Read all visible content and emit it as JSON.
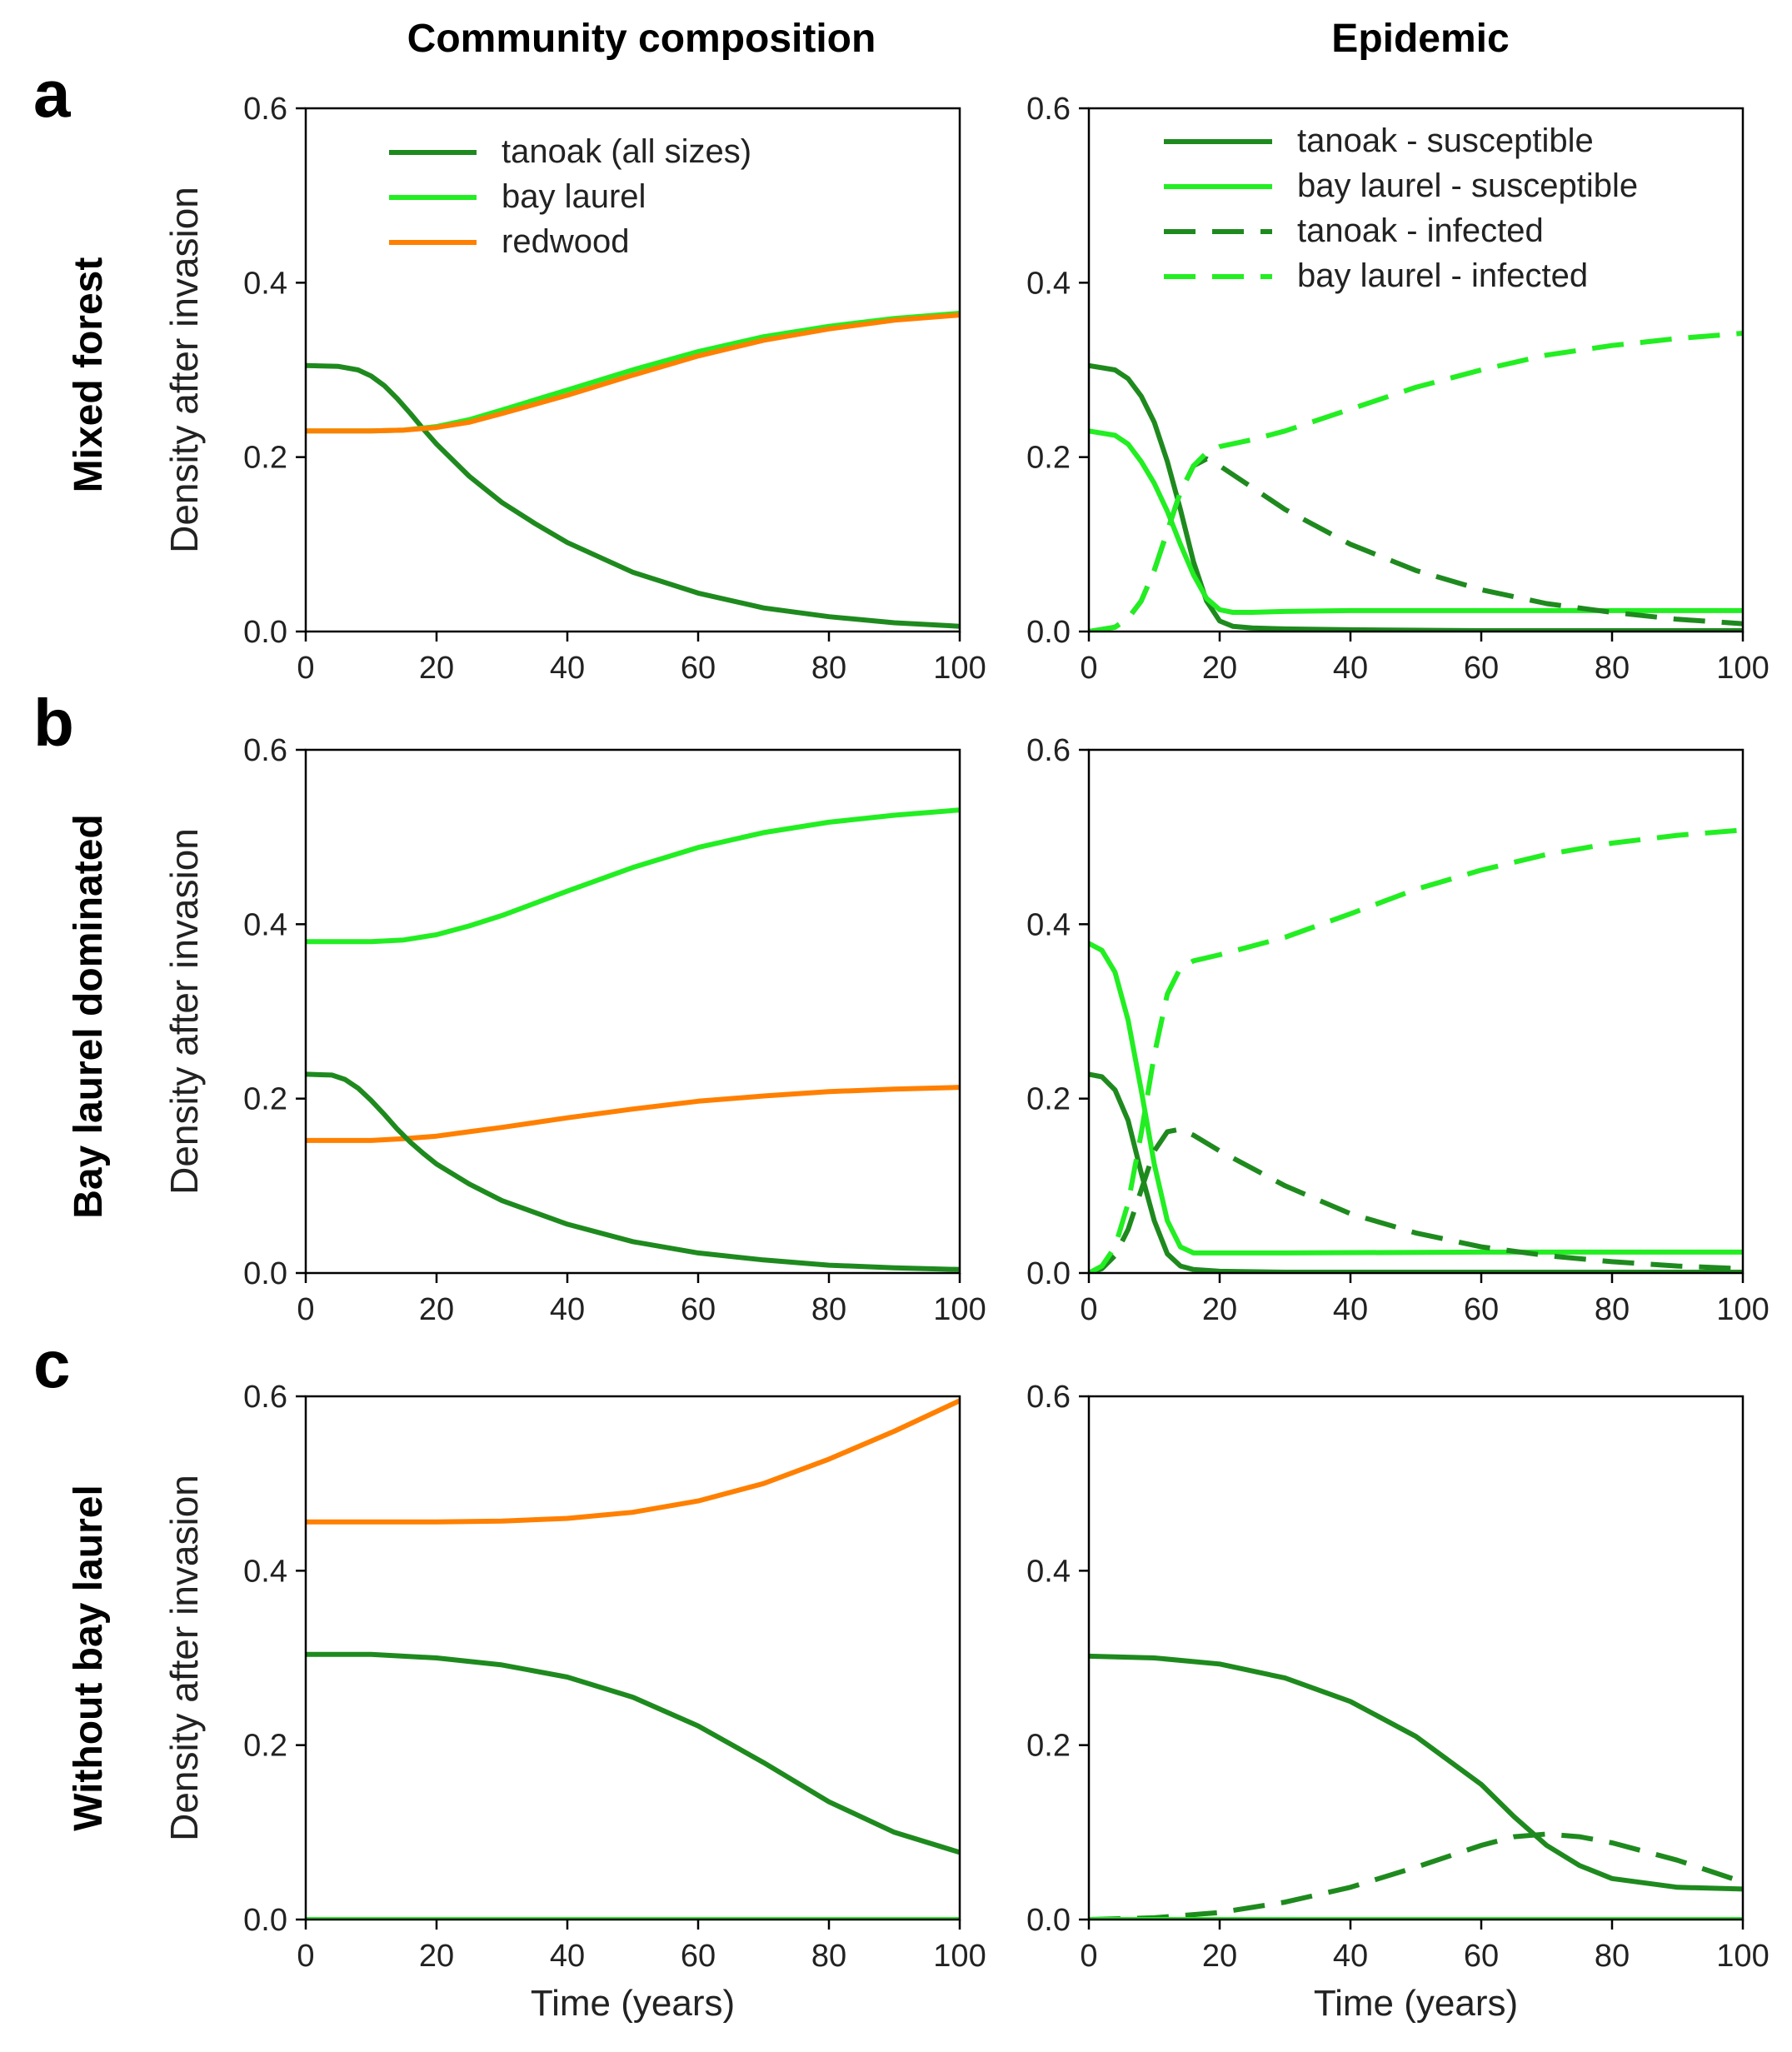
{
  "figure": {
    "column_headers": [
      "Community composition",
      "Epidemic"
    ],
    "rows": [
      {
        "letter": "a",
        "label": "Mixed forest"
      },
      {
        "letter": "b",
        "label": "Bay laurel dominated"
      },
      {
        "letter": "c",
        "label": "Without bay laurel"
      }
    ],
    "colors": {
      "dark_green": "#1e8a1e",
      "light_green": "#22ee22",
      "orange": "#ff8000"
    }
  },
  "chart_data": [
    {
      "id": "a-community",
      "type": "line",
      "title": "",
      "xlabel": "",
      "ylabel": "Density after invasion",
      "xlim": [
        0,
        100
      ],
      "ylim": [
        0,
        0.6
      ],
      "xticks": [
        0,
        20,
        40,
        60,
        80,
        100
      ],
      "yticks": [
        "0.0",
        "0.2",
        "0.4",
        "0.6"
      ],
      "legend": [
        "tanoak (all sizes)",
        "bay laurel",
        "redwood"
      ],
      "series": [
        {
          "name": "tanoak (all sizes)",
          "color": "#1e8a1e",
          "dash": "solid",
          "x": [
            0,
            5,
            8,
            10,
            12,
            14,
            16,
            18,
            20,
            25,
            30,
            35,
            40,
            50,
            60,
            70,
            80,
            90,
            100
          ],
          "y": [
            0.305,
            0.304,
            0.3,
            0.293,
            0.282,
            0.267,
            0.25,
            0.232,
            0.215,
            0.178,
            0.148,
            0.124,
            0.102,
            0.068,
            0.044,
            0.027,
            0.017,
            0.01,
            0.006
          ]
        },
        {
          "name": "bay laurel",
          "color": "#22ee22",
          "dash": "solid",
          "x": [
            0,
            10,
            15,
            20,
            25,
            30,
            40,
            50,
            60,
            70,
            80,
            90,
            100
          ],
          "y": [
            0.23,
            0.23,
            0.231,
            0.235,
            0.243,
            0.254,
            0.277,
            0.3,
            0.321,
            0.338,
            0.35,
            0.359,
            0.365
          ]
        },
        {
          "name": "redwood",
          "color": "#ff8000",
          "dash": "solid",
          "x": [
            0,
            10,
            15,
            20,
            25,
            30,
            40,
            50,
            60,
            70,
            80,
            90,
            100
          ],
          "y": [
            0.23,
            0.23,
            0.231,
            0.234,
            0.24,
            0.25,
            0.271,
            0.294,
            0.316,
            0.334,
            0.347,
            0.357,
            0.363
          ]
        }
      ]
    },
    {
      "id": "a-epidemic",
      "type": "line",
      "title": "",
      "xlabel": "",
      "ylabel": "",
      "xlim": [
        0,
        100
      ],
      "ylim": [
        0,
        0.6
      ],
      "xticks": [
        0,
        20,
        40,
        60,
        80,
        100
      ],
      "yticks": [
        "0.0",
        "0.2",
        "0.4",
        "0.6"
      ],
      "legend": [
        "tanoak - susceptible",
        "bay laurel - susceptible",
        "tanoak - infected",
        "bay laurel - infected"
      ],
      "series": [
        {
          "name": "tanoak - susceptible",
          "color": "#1e8a1e",
          "dash": "solid",
          "x": [
            0,
            4,
            6,
            8,
            10,
            12,
            14,
            16,
            18,
            20,
            22,
            25,
            30,
            40,
            60,
            80,
            100
          ],
          "y": [
            0.305,
            0.3,
            0.29,
            0.27,
            0.24,
            0.195,
            0.14,
            0.08,
            0.035,
            0.012,
            0.006,
            0.004,
            0.003,
            0.002,
            0.001,
            0.001,
            0.001
          ]
        },
        {
          "name": "bay laurel - susceptible",
          "color": "#22ee22",
          "dash": "solid",
          "x": [
            0,
            4,
            6,
            8,
            10,
            12,
            14,
            16,
            18,
            20,
            22,
            25,
            30,
            40,
            60,
            80,
            100
          ],
          "y": [
            0.23,
            0.225,
            0.215,
            0.195,
            0.17,
            0.138,
            0.1,
            0.065,
            0.038,
            0.025,
            0.022,
            0.022,
            0.023,
            0.024,
            0.024,
            0.024,
            0.024
          ]
        },
        {
          "name": "tanoak - infected",
          "color": "#1e8a1e",
          "dash": "dash",
          "x": [
            0,
            4,
            6,
            8,
            10,
            12,
            14,
            16,
            18,
            20,
            25,
            30,
            40,
            50,
            60,
            70,
            80,
            90,
            100
          ],
          "y": [
            0.0,
            0.005,
            0.015,
            0.035,
            0.07,
            0.115,
            0.16,
            0.19,
            0.198,
            0.19,
            0.165,
            0.14,
            0.1,
            0.07,
            0.048,
            0.032,
            0.022,
            0.014,
            0.009
          ]
        },
        {
          "name": "bay laurel - infected",
          "color": "#22ee22",
          "dash": "dash",
          "x": [
            0,
            4,
            6,
            8,
            10,
            12,
            14,
            16,
            18,
            20,
            25,
            30,
            40,
            50,
            60,
            70,
            80,
            90,
            100
          ],
          "y": [
            0.0,
            0.005,
            0.015,
            0.035,
            0.07,
            0.115,
            0.16,
            0.19,
            0.205,
            0.212,
            0.22,
            0.23,
            0.255,
            0.28,
            0.3,
            0.317,
            0.328,
            0.336,
            0.342
          ]
        }
      ]
    },
    {
      "id": "b-community",
      "type": "line",
      "title": "",
      "xlabel": "",
      "ylabel": "Density after invasion",
      "xlim": [
        0,
        100
      ],
      "ylim": [
        0,
        0.6
      ],
      "xticks": [
        0,
        20,
        40,
        60,
        80,
        100
      ],
      "yticks": [
        "0.0",
        "0.2",
        "0.4",
        "0.6"
      ],
      "legend": [],
      "series": [
        {
          "name": "bay laurel",
          "color": "#22ee22",
          "dash": "solid",
          "x": [
            0,
            10,
            15,
            20,
            25,
            30,
            40,
            50,
            60,
            70,
            80,
            90,
            100
          ],
          "y": [
            0.38,
            0.38,
            0.382,
            0.388,
            0.398,
            0.41,
            0.438,
            0.465,
            0.488,
            0.505,
            0.517,
            0.525,
            0.531
          ]
        },
        {
          "name": "redwood",
          "color": "#ff8000",
          "dash": "solid",
          "x": [
            0,
            10,
            15,
            20,
            25,
            30,
            40,
            50,
            60,
            70,
            80,
            90,
            100
          ],
          "y": [
            0.152,
            0.152,
            0.154,
            0.157,
            0.162,
            0.167,
            0.178,
            0.188,
            0.197,
            0.203,
            0.208,
            0.211,
            0.213
          ]
        },
        {
          "name": "tanoak (all sizes)",
          "color": "#1e8a1e",
          "dash": "solid",
          "x": [
            0,
            4,
            6,
            8,
            10,
            12,
            14,
            16,
            18,
            20,
            25,
            30,
            40,
            50,
            60,
            70,
            80,
            90,
            100
          ],
          "y": [
            0.228,
            0.227,
            0.222,
            0.212,
            0.198,
            0.182,
            0.165,
            0.15,
            0.137,
            0.125,
            0.102,
            0.083,
            0.056,
            0.036,
            0.023,
            0.015,
            0.009,
            0.006,
            0.004
          ]
        }
      ]
    },
    {
      "id": "b-epidemic",
      "type": "line",
      "title": "",
      "xlabel": "",
      "ylabel": "",
      "xlim": [
        0,
        100
      ],
      "ylim": [
        0,
        0.6
      ],
      "xticks": [
        0,
        20,
        40,
        60,
        80,
        100
      ],
      "yticks": [
        "0.0",
        "0.2",
        "0.4",
        "0.6"
      ],
      "legend": [],
      "series": [
        {
          "name": "tanoak - susceptible",
          "color": "#1e8a1e",
          "dash": "solid",
          "x": [
            0,
            2,
            4,
            6,
            8,
            10,
            12,
            14,
            16,
            20,
            30,
            60,
            100
          ],
          "y": [
            0.228,
            0.225,
            0.21,
            0.175,
            0.115,
            0.06,
            0.022,
            0.008,
            0.004,
            0.002,
            0.001,
            0.001,
            0.001
          ]
        },
        {
          "name": "bay laurel - susceptible",
          "color": "#22ee22",
          "dash": "solid",
          "x": [
            0,
            2,
            4,
            6,
            8,
            10,
            12,
            14,
            16,
            20,
            30,
            60,
            100
          ],
          "y": [
            0.378,
            0.37,
            0.345,
            0.29,
            0.21,
            0.125,
            0.06,
            0.03,
            0.023,
            0.023,
            0.023,
            0.024,
            0.024
          ]
        },
        {
          "name": "tanoak - infected",
          "color": "#1e8a1e",
          "dash": "dash",
          "x": [
            0,
            2,
            4,
            6,
            8,
            10,
            12,
            14,
            16,
            20,
            30,
            40,
            50,
            60,
            70,
            80,
            90,
            100
          ],
          "y": [
            0.0,
            0.005,
            0.02,
            0.05,
            0.095,
            0.14,
            0.162,
            0.165,
            0.158,
            0.14,
            0.1,
            0.068,
            0.046,
            0.03,
            0.02,
            0.013,
            0.008,
            0.005
          ]
        },
        {
          "name": "bay laurel - infected",
          "color": "#22ee22",
          "dash": "dash",
          "x": [
            0,
            2,
            4,
            6,
            8,
            10,
            12,
            14,
            16,
            20,
            30,
            40,
            50,
            60,
            70,
            80,
            90,
            100
          ],
          "y": [
            0.0,
            0.008,
            0.03,
            0.08,
            0.16,
            0.25,
            0.32,
            0.35,
            0.358,
            0.365,
            0.385,
            0.412,
            0.44,
            0.462,
            0.48,
            0.493,
            0.502,
            0.508
          ]
        }
      ]
    },
    {
      "id": "c-community",
      "type": "line",
      "title": "",
      "xlabel": "Time (years)",
      "ylabel": "Density after invasion",
      "xlim": [
        0,
        100
      ],
      "ylim": [
        0,
        0.6
      ],
      "xticks": [
        0,
        20,
        40,
        60,
        80,
        100
      ],
      "yticks": [
        "0.0",
        "0.2",
        "0.4",
        "0.6"
      ],
      "legend": [],
      "series": [
        {
          "name": "redwood",
          "color": "#ff8000",
          "dash": "solid",
          "x": [
            0,
            10,
            20,
            30,
            40,
            50,
            60,
            70,
            80,
            90,
            100
          ],
          "y": [
            0.456,
            0.456,
            0.456,
            0.457,
            0.46,
            0.467,
            0.48,
            0.5,
            0.528,
            0.56,
            0.595
          ]
        },
        {
          "name": "tanoak (all sizes)",
          "color": "#1e8a1e",
          "dash": "solid",
          "x": [
            0,
            10,
            20,
            30,
            40,
            50,
            60,
            70,
            80,
            90,
            100
          ],
          "y": [
            0.304,
            0.304,
            0.3,
            0.292,
            0.278,
            0.255,
            0.222,
            0.18,
            0.135,
            0.1,
            0.077
          ]
        },
        {
          "name": "bay laurel",
          "color": "#22ee22",
          "dash": "solid",
          "x": [
            0,
            100
          ],
          "y": [
            0.0,
            0.0
          ]
        }
      ]
    },
    {
      "id": "c-epidemic",
      "type": "line",
      "title": "",
      "xlabel": "Time (years)",
      "ylabel": "",
      "xlim": [
        0,
        100
      ],
      "ylim": [
        0,
        0.6
      ],
      "xticks": [
        0,
        20,
        40,
        60,
        80,
        100
      ],
      "yticks": [
        "0.0",
        "0.2",
        "0.4",
        "0.6"
      ],
      "legend": [],
      "series": [
        {
          "name": "tanoak - susceptible",
          "color": "#1e8a1e",
          "dash": "solid",
          "x": [
            0,
            10,
            20,
            30,
            40,
            50,
            60,
            65,
            70,
            75,
            80,
            90,
            100
          ],
          "y": [
            0.302,
            0.3,
            0.293,
            0.277,
            0.25,
            0.21,
            0.155,
            0.118,
            0.085,
            0.062,
            0.047,
            0.037,
            0.035
          ]
        },
        {
          "name": "tanoak - infected",
          "color": "#1e8a1e",
          "dash": "dash",
          "x": [
            0,
            10,
            20,
            30,
            40,
            50,
            60,
            65,
            70,
            75,
            80,
            90,
            100
          ],
          "y": [
            0.0,
            0.002,
            0.008,
            0.02,
            0.037,
            0.06,
            0.085,
            0.095,
            0.098,
            0.095,
            0.088,
            0.068,
            0.043
          ]
        },
        {
          "name": "bay laurel - susceptible",
          "color": "#22ee22",
          "dash": "solid",
          "x": [
            0,
            100
          ],
          "y": [
            0.0,
            0.0
          ]
        }
      ]
    }
  ]
}
